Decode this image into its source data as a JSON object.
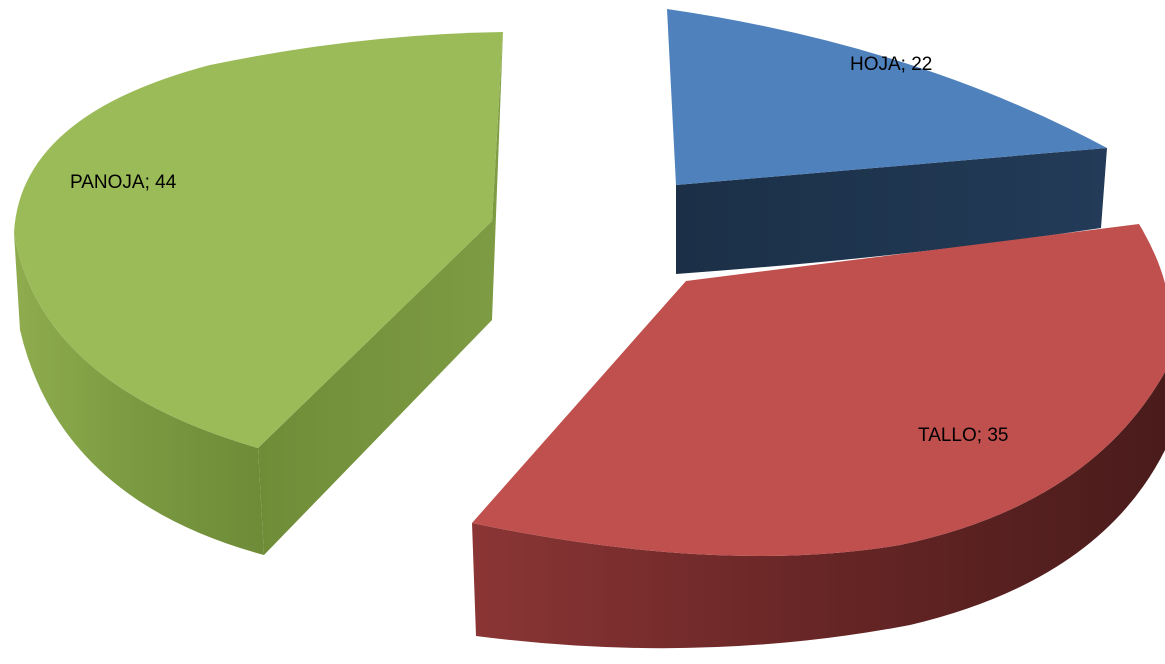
{
  "chart_data": {
    "type": "pie",
    "style": "3d-exploded",
    "title": "",
    "categories": [
      "HOJA",
      "TALLO",
      "PANOJA"
    ],
    "values": [
      22,
      35,
      44
    ],
    "labels": [
      "HOJA; 22",
      "TALLO; 35",
      "PANOJA; 44"
    ],
    "colors": [
      "#4F81BD",
      "#C0504D",
      "#9BBB59"
    ],
    "side_colors": [
      "#1F3550",
      "#6E2828",
      "#76923C"
    ],
    "legend": "none",
    "data_label_format": "category; value"
  }
}
